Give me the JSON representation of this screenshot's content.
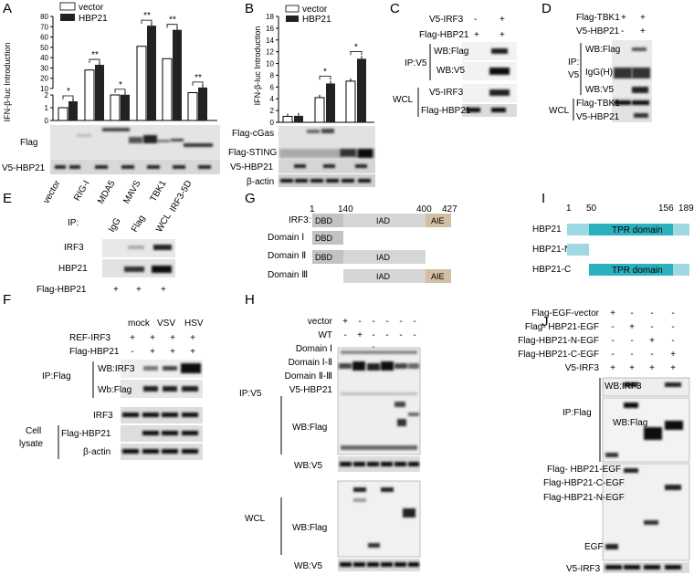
{
  "panels": {
    "A": {
      "letter": "A",
      "legend": [
        "vector",
        "HBP21"
      ],
      "ylabel": "IFN-β-luc Introduction",
      "yticks": [
        "0",
        "1",
        "2",
        "10",
        "20",
        "30",
        "40",
        "50",
        "60",
        "70",
        "80"
      ],
      "sig": [
        "*",
        "**",
        "*",
        "**",
        "**",
        "**"
      ],
      "blots": [
        "Flag",
        "V5-HBP21"
      ],
      "lanes": [
        "vector",
        "RIG-I",
        "MDA5",
        "MAVS",
        "TBK1",
        "IRF3-5D"
      ]
    },
    "B": {
      "letter": "B",
      "legend": [
        "vector",
        "HBP21"
      ],
      "ylabel": "IFN-β-luc Introduction",
      "yticks": [
        "0",
        "2",
        "4",
        "6",
        "8",
        "10",
        "12",
        "14",
        "16",
        "18"
      ],
      "sig": [
        "*",
        "*"
      ],
      "blots": [
        "Flag-cGas",
        "Flag-STING",
        "V5-HBP21",
        "β-actin"
      ]
    },
    "C": {
      "letter": "C",
      "rows": [
        {
          "label": "V5-IRF3",
          "marks": [
            "-",
            "+"
          ]
        },
        {
          "label": "Flag-HBP21",
          "marks": [
            "+",
            "+"
          ]
        }
      ],
      "group1": "IP:V5",
      "group1_blots": [
        "WB:Flag",
        "WB:V5"
      ],
      "group2": "WCL",
      "group2_blots": [
        "V5-IRF3",
        "Flag-HBP21"
      ]
    },
    "D": {
      "letter": "D",
      "rows": [
        {
          "label": "Flag-TBK1",
          "marks": [
            "+",
            "+"
          ]
        },
        {
          "label": "V5-HBP21",
          "marks": [
            "-",
            "+"
          ]
        }
      ],
      "group1_a": "IP:",
      "group1_b": "V5",
      "group1_blots": [
        "WB:Flag",
        "IgG(H)",
        "WB:V5"
      ],
      "group2": "WCL",
      "group2_blots": [
        "Flag-TBK1",
        "V5-HBP21"
      ]
    },
    "E": {
      "letter": "E",
      "ip": "IP:",
      "lanes": [
        "IgG",
        "Flag",
        "WCL"
      ],
      "blots": [
        "IRF3",
        "HBP21"
      ],
      "row": {
        "label": "Flag-HBP21",
        "marks": [
          "+",
          "+",
          "+"
        ]
      }
    },
    "F": {
      "letter": "F",
      "cols": [
        "mock",
        "VSV",
        "HSV"
      ],
      "rows": [
        {
          "label": "REF-IRF3",
          "marks": [
            "+",
            "+",
            "+",
            "+"
          ]
        },
        {
          "label": "Flag-HBP21",
          "marks": [
            "-",
            "+",
            "+",
            "+"
          ]
        }
      ],
      "group1": "IP:Flag",
      "group1_blots": [
        "WB:IRF3",
        "Wb:Flag"
      ],
      "group2_a": "Cell",
      "group2_b": "lysate",
      "group2_blots": [
        "IRF3",
        "Flag-HBP21",
        "β-actin"
      ]
    },
    "G": {
      "letter": "G",
      "positions": [
        "1",
        "140",
        "400",
        "427"
      ],
      "rows": [
        {
          "label": "IRF3:",
          "domains": [
            "DBD",
            "IAD",
            "AIE"
          ]
        },
        {
          "label": "Domain Ⅰ",
          "domains": [
            "DBD"
          ]
        },
        {
          "label": "Domain Ⅱ",
          "domains": [
            "DBD",
            "IAD"
          ]
        },
        {
          "label": "Domain Ⅲ",
          "domains": [
            "IAD",
            "AIE"
          ]
        }
      ]
    },
    "H": {
      "letter": "H",
      "rows": [
        {
          "label": "vector",
          "marks": [
            "+",
            "-",
            "-",
            "-",
            "-",
            "-"
          ]
        },
        {
          "label": "WT",
          "marks": [
            "-",
            "+",
            "-",
            "-",
            "-",
            "-"
          ]
        },
        {
          "label": "Domain Ⅰ",
          "marks": [
            "-",
            "-",
            "+",
            "-",
            "-",
            "-"
          ]
        },
        {
          "label": "Domain Ⅰ-Ⅱ",
          "marks": [
            "-",
            "-",
            "-",
            "+",
            "-",
            "-"
          ]
        },
        {
          "label": "Domain Ⅱ-Ⅲ",
          "marks": [
            "-",
            "-",
            "-",
            "-",
            "+",
            "-"
          ]
        },
        {
          "label": "V5-HBP21",
          "marks": [
            "+",
            "+",
            "+",
            "+",
            "+",
            "+"
          ]
        }
      ],
      "group1": "IP:V5",
      "group1_blots": [
        "WB:Flag",
        "WB:V5"
      ],
      "group2": "WCL",
      "group2_blots": [
        "WB:Flag",
        "WB:V5"
      ]
    },
    "I": {
      "letter": "I",
      "positions": [
        "1",
        "50",
        "156",
        "189"
      ],
      "rows": [
        {
          "label": "HBP21",
          "domain": "TPR domain"
        },
        {
          "label": "HBP21-N",
          "domain": ""
        },
        {
          "label": "HBP21-C",
          "domain": "TPR domain"
        }
      ]
    },
    "J": {
      "letter": "J",
      "rows": [
        {
          "label": "Flag-EGF-vector",
          "marks": [
            "+",
            "-",
            "-",
            "-"
          ]
        },
        {
          "label": "Flag- HBP21-EGF",
          "marks": [
            "-",
            "+",
            "-",
            "-"
          ]
        },
        {
          "label": "Flag-HBP21-N-EGF",
          "marks": [
            "-",
            "-",
            "+",
            "-"
          ]
        },
        {
          "label": "Flag-HBP21-C-EGF",
          "marks": [
            "-",
            "-",
            "-",
            "+"
          ]
        },
        {
          "label": "V5-IRF3",
          "marks": [
            "+",
            "+",
            "+",
            "+"
          ]
        }
      ],
      "group1": "IP:Flag",
      "group1_blots": [
        "WB:IRF3",
        "WB:Flag"
      ],
      "wcl_labels": [
        "Flag- HBP21-EGF",
        "Flag-HBP21-C-EGF",
        "Flag-HBP21-N-EGF",
        "EGF"
      ],
      "bottom_blot": "V5-IRF3"
    }
  },
  "chart_data": [
    {
      "type": "bar",
      "panel": "A",
      "ylabel": "IFN-β-luc Introduction",
      "categories": [
        "vector",
        "RIG-I",
        "MDA5",
        "MAVS",
        "TBK1",
        "IRF3-5D"
      ],
      "series": [
        {
          "name": "vector",
          "values": [
            1.0,
            28,
            2.0,
            51,
            39,
            6
          ]
        },
        {
          "name": "HBP21",
          "values": [
            1.5,
            33,
            4.0,
            71,
            67,
            11
          ]
        }
      ],
      "ylim": [
        0,
        80
      ],
      "axis_break": true
    },
    {
      "type": "bar",
      "panel": "B",
      "ylabel": "IFN-β-luc Introduction",
      "series": [
        {
          "name": "vector",
          "values": [
            1.0,
            4.2,
            7.0
          ]
        },
        {
          "name": "HBP21",
          "values": [
            1.1,
            6.6,
            10.8
          ]
        }
      ],
      "ylim": [
        0,
        18
      ]
    }
  ]
}
